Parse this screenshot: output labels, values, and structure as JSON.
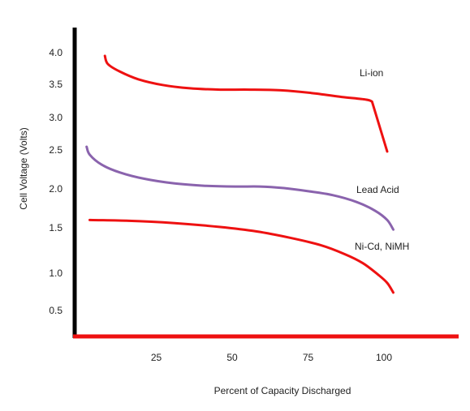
{
  "chart_data": {
    "type": "line",
    "title": "",
    "xlabel": "Percent of Capacity Discharged",
    "ylabel": "Cell Voltage (Volts)",
    "x_ticks": [
      "25",
      "50",
      "75",
      "100"
    ],
    "y_ticks": [
      "0.5",
      "1.0",
      "1.5",
      "2.0",
      "2.5",
      "3.0",
      "3.5",
      "4.0"
    ],
    "grid": false,
    "series": [
      {
        "name": "Li-ion",
        "color": "#ee1111",
        "points": [
          [
            7,
            3.95
          ],
          [
            8,
            3.82
          ],
          [
            12,
            3.7
          ],
          [
            18,
            3.58
          ],
          [
            26,
            3.49
          ],
          [
            35,
            3.44
          ],
          [
            45,
            3.42
          ],
          [
            55,
            3.42
          ],
          [
            65,
            3.41
          ],
          [
            75,
            3.37
          ],
          [
            85,
            3.31
          ],
          [
            93,
            3.27
          ],
          [
            95,
            3.24
          ],
          [
            100,
            2.48
          ]
        ]
      },
      {
        "name": "Lead Acid",
        "color": "#8a63ad",
        "points": [
          [
            1,
            2.55
          ],
          [
            2,
            2.44
          ],
          [
            6,
            2.31
          ],
          [
            12,
            2.21
          ],
          [
            20,
            2.13
          ],
          [
            30,
            2.07
          ],
          [
            40,
            2.04
          ],
          [
            50,
            2.03
          ],
          [
            58,
            2.03
          ],
          [
            66,
            2.01
          ],
          [
            74,
            1.97
          ],
          [
            82,
            1.92
          ],
          [
            90,
            1.83
          ],
          [
            96,
            1.72
          ],
          [
            100,
            1.6
          ],
          [
            102,
            1.48
          ]
        ]
      },
      {
        "name": "Ni-Cd, NiMH",
        "color": "#ee1111",
        "points": [
          [
            2,
            1.6
          ],
          [
            15,
            1.59
          ],
          [
            30,
            1.56
          ],
          [
            45,
            1.51
          ],
          [
            57,
            1.46
          ],
          [
            68,
            1.39
          ],
          [
            78,
            1.31
          ],
          [
            86,
            1.21
          ],
          [
            92,
            1.11
          ],
          [
            97,
            0.98
          ],
          [
            100,
            0.87
          ],
          [
            102,
            0.74
          ]
        ]
      }
    ],
    "legend": "inline labels near curves",
    "axis_color": "#000000",
    "baseline_color": "#ee1111"
  }
}
